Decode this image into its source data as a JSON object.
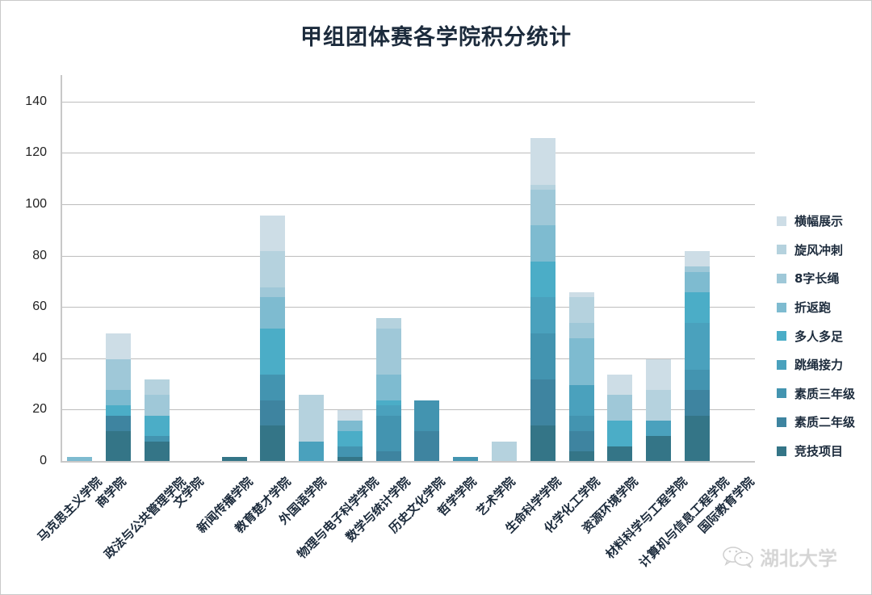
{
  "title": "甲组团体赛各学院积分统计",
  "watermark": {
    "icon": "wechat-icon",
    "text": "湖北大学"
  },
  "chart_data": {
    "type": "bar",
    "stacked": true,
    "title": "甲组团体赛各学院积分统计",
    "xlabel": "",
    "ylabel": "",
    "ylim": [
      0,
      150
    ],
    "yticks": [
      0,
      20,
      40,
      60,
      80,
      100,
      120,
      140
    ],
    "grid": true,
    "legend_position": "right",
    "categories": [
      "马克思主义学院",
      "商学院",
      "政法与公共管理学院",
      "文学院",
      "新闻传播学院",
      "教育楚才学院",
      "外国语学院",
      "物理与电子科学学院",
      "数学与统计学院",
      "历史文化学院",
      "哲学学院",
      "艺术学院",
      "生命科学学院",
      "化学化工学院",
      "资源环境学院",
      "材料科学与工程学院",
      "计算机与信息工程学院",
      "国际教育学院"
    ],
    "series": [
      {
        "name": "竞技项目",
        "color": "#347587",
        "values": [
          0,
          12,
          8,
          0,
          2,
          14,
          0,
          2,
          0,
          0,
          0,
          0,
          14,
          4,
          6,
          10,
          18,
          0
        ]
      },
      {
        "name": "素质二年级",
        "color": "#3e84a0",
        "values": [
          0,
          6,
          0,
          0,
          0,
          10,
          0,
          0,
          4,
          12,
          0,
          0,
          18,
          8,
          0,
          0,
          10,
          0
        ]
      },
      {
        "name": "素质三年级",
        "color": "#4394b0",
        "values": [
          0,
          0,
          2,
          0,
          0,
          10,
          0,
          4,
          14,
          12,
          2,
          0,
          18,
          6,
          0,
          0,
          8,
          0
        ]
      },
      {
        "name": "跳绳接力",
        "color": "#4aa1bd",
        "values": [
          0,
          0,
          0,
          0,
          0,
          0,
          8,
          0,
          4,
          0,
          0,
          0,
          14,
          12,
          0,
          6,
          18,
          0
        ]
      },
      {
        "name": "多人多足",
        "color": "#4badc7",
        "values": [
          0,
          4,
          8,
          0,
          0,
          18,
          0,
          6,
          2,
          0,
          0,
          0,
          14,
          0,
          10,
          0,
          12,
          0
        ]
      },
      {
        "name": "折返跑",
        "color": "#7ebbd0",
        "values": [
          2,
          6,
          0,
          0,
          0,
          12,
          0,
          4,
          10,
          0,
          0,
          0,
          14,
          18,
          0,
          0,
          8,
          0
        ]
      },
      {
        "name": "8字长绳",
        "color": "#9fc8d8",
        "values": [
          0,
          12,
          8,
          0,
          0,
          4,
          0,
          0,
          18,
          0,
          0,
          0,
          14,
          6,
          10,
          0,
          2,
          0
        ]
      },
      {
        "name": "旋风冲刺",
        "color": "#b5d2de",
        "values": [
          0,
          0,
          6,
          0,
          0,
          14,
          18,
          0,
          4,
          0,
          0,
          8,
          2,
          10,
          0,
          12,
          0,
          0
        ]
      },
      {
        "name": "横幅展示",
        "color": "#cddde6",
        "values": [
          0,
          10,
          0,
          0,
          0,
          14,
          0,
          4,
          0,
          0,
          0,
          0,
          18,
          2,
          8,
          12,
          6,
          0
        ]
      }
    ],
    "totals": [
      2,
      50,
      32,
      0,
      2,
      96,
      26,
      20,
      56,
      24,
      2,
      8,
      126,
      66,
      34,
      40,
      82,
      0
    ]
  }
}
